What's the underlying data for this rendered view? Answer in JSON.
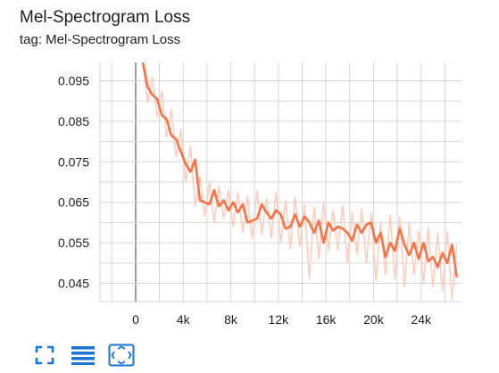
{
  "card": {
    "title": "Mel-Spectrogram Loss",
    "tag": "tag: Mel-Spectrogram Loss"
  },
  "colors": {
    "smoothed_line": "#ff7043",
    "raw_line": "#ffccbc",
    "grid": "#d6d6d6",
    "axis_zero": "#9e9e9e",
    "icon": "#1976d2"
  },
  "toolbar": {
    "icons": [
      "fullscreen-icon",
      "toggle-log-scale-icon",
      "fit-domain-icon"
    ]
  },
  "chart_data": {
    "type": "line",
    "title": "Mel-Spectrogram Loss",
    "xlabel": "",
    "ylabel": "",
    "xlim": [
      -3000,
      27400
    ],
    "ylim": [
      0.0405,
      0.0995
    ],
    "xticks": [
      0,
      4000,
      8000,
      12000,
      16000,
      20000,
      24000
    ],
    "xtick_labels": [
      "0",
      "4k",
      "8k",
      "12k",
      "16k",
      "20k",
      "24k"
    ],
    "yticks": [
      0.045,
      0.055,
      0.065,
      0.075,
      0.085,
      0.095
    ],
    "ytick_labels": [
      "0.045",
      "0.055",
      "0.065",
      "0.075",
      "0.085",
      "0.095"
    ],
    "grid": true,
    "series": [
      {
        "x": [
          600,
          1000,
          1400,
          1800,
          2200,
          2600,
          3000,
          3400,
          3800,
          4200,
          4600,
          5000,
          5400,
          5800,
          6200,
          6600,
          7000,
          7400,
          7800,
          8200,
          8600,
          9000,
          9400,
          9800,
          10200,
          10600,
          11000,
          11400,
          11800,
          12200,
          12600,
          13000,
          13400,
          13800,
          14200,
          14600,
          15000,
          15400,
          15800,
          16200,
          16600,
          17000,
          17400,
          17800,
          18200,
          18600,
          19000,
          19400,
          19800,
          20200,
          20600,
          21000,
          21400,
          21800,
          22200,
          22600,
          23000,
          23400,
          23800,
          24200,
          24600,
          25000,
          25400,
          25800,
          26200,
          26600,
          27000
        ],
        "values": [
          0.0995,
          0.0935,
          0.0915,
          0.0905,
          0.0865,
          0.0855,
          0.0815,
          0.0805,
          0.0775,
          0.0745,
          0.0725,
          0.0755,
          0.0655,
          0.065,
          0.0645,
          0.068,
          0.064,
          0.0655,
          0.063,
          0.065,
          0.0625,
          0.0645,
          0.06,
          0.0605,
          0.061,
          0.0645,
          0.0625,
          0.061,
          0.063,
          0.062,
          0.0585,
          0.059,
          0.062,
          0.059,
          0.0615,
          0.06,
          0.0575,
          0.0605,
          0.055,
          0.06,
          0.058,
          0.059,
          0.0585,
          0.0575,
          0.0555,
          0.0595,
          0.0575,
          0.0595,
          0.06,
          0.055,
          0.0575,
          0.0515,
          0.055,
          0.053,
          0.0585,
          0.0545,
          0.052,
          0.055,
          0.051,
          0.055,
          0.0505,
          0.0515,
          0.049,
          0.0525,
          0.05,
          0.0545,
          0.0465
        ]
      },
      {
        "x": [
          600,
          1000,
          1400,
          1800,
          2200,
          2600,
          3000,
          3400,
          3800,
          4200,
          4600,
          5000,
          5400,
          5800,
          6200,
          6600,
          7000,
          7400,
          7800,
          8200,
          8600,
          9000,
          9400,
          9800,
          10200,
          10600,
          11000,
          11400,
          11800,
          12200,
          12600,
          13000,
          13400,
          13800,
          14200,
          14600,
          15000,
          15400,
          15800,
          16200,
          16600,
          17000,
          17400,
          17800,
          18200,
          18600,
          19000,
          19400,
          19800,
          20200,
          20600,
          21000,
          21400,
          21800,
          22200,
          22600,
          23000,
          23400,
          23800,
          24200,
          24600,
          25000,
          25400,
          25800,
          26200,
          26600,
          27000
        ],
        "values": [
          0.0995,
          0.0895,
          0.096,
          0.086,
          0.0925,
          0.081,
          0.088,
          0.076,
          0.083,
          0.07,
          0.079,
          0.064,
          0.0715,
          0.0615,
          0.07,
          0.06,
          0.069,
          0.061,
          0.068,
          0.059,
          0.0675,
          0.0575,
          0.0665,
          0.056,
          0.068,
          0.057,
          0.066,
          0.056,
          0.0675,
          0.055,
          0.0655,
          0.0535,
          0.0665,
          0.054,
          0.0645,
          0.046,
          0.064,
          0.051,
          0.065,
          0.053,
          0.063,
          0.053,
          0.0645,
          0.05,
          0.0625,
          0.052,
          0.0635,
          0.05,
          0.0625,
          0.0455,
          0.06,
          0.047,
          0.062,
          0.046,
          0.0615,
          0.044,
          0.06,
          0.047,
          0.058,
          0.045,
          0.059,
          0.044,
          0.0575,
          0.043,
          0.058,
          0.041,
          0.0545
        ]
      }
    ]
  }
}
